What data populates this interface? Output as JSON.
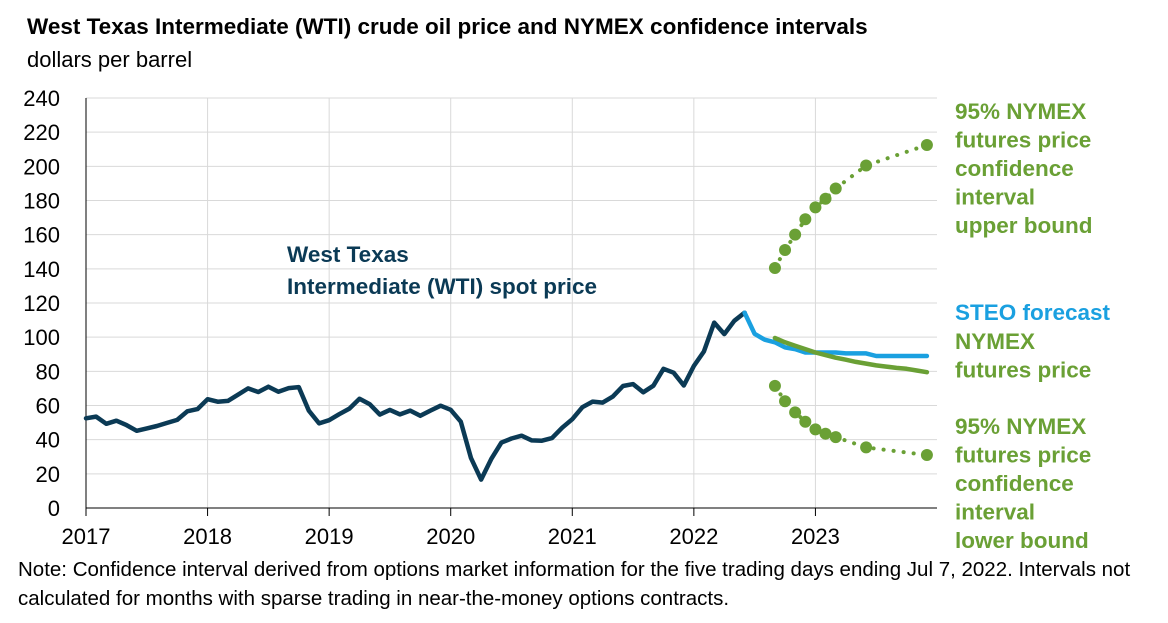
{
  "title": "West Texas Intermediate (WTI) crude oil price and NYMEX confidence intervals",
  "subtitle": "dollars per barrel",
  "note": "Note: Confidence interval derived from options market information for the five trading days ending Jul 7, 2022. Intervals not calculated for months with sparse trading in near-the-money options contracts.",
  "colors": {
    "wti": "#0b3a55",
    "steo": "#1aa0e0",
    "nymex": "#6aa035",
    "grid": "#d9d9d9",
    "axis": "#000000"
  },
  "chart_data": {
    "type": "line",
    "xlim": [
      2017,
      2024
    ],
    "ylim": [
      0,
      240
    ],
    "yticks": [
      0,
      20,
      40,
      60,
      80,
      100,
      120,
      140,
      160,
      180,
      200,
      220,
      240
    ],
    "xticks": [
      "2017",
      "2018",
      "2019",
      "2020",
      "2021",
      "2022",
      "2023"
    ],
    "xtick_values": [
      2017,
      2018,
      2019,
      2020,
      2021,
      2022,
      2023
    ],
    "grid": true,
    "series": [
      {
        "name": "West Texas Intermediate (WTI) spot price",
        "label_lines": [
          "West Texas",
          "Intermediate (WTI) spot price"
        ],
        "color_key": "wti",
        "x": [
          2017.0,
          2017.083,
          2017.167,
          2017.25,
          2017.333,
          2017.417,
          2017.5,
          2017.583,
          2017.667,
          2017.75,
          2017.833,
          2017.917,
          2018.0,
          2018.083,
          2018.167,
          2018.25,
          2018.333,
          2018.417,
          2018.5,
          2018.583,
          2018.667,
          2018.75,
          2018.833,
          2018.917,
          2019.0,
          2019.083,
          2019.167,
          2019.25,
          2019.333,
          2019.417,
          2019.5,
          2019.583,
          2019.667,
          2019.75,
          2019.833,
          2019.917,
          2020.0,
          2020.083,
          2020.167,
          2020.25,
          2020.333,
          2020.417,
          2020.5,
          2020.583,
          2020.667,
          2020.75,
          2020.833,
          2020.917,
          2021.0,
          2021.083,
          2021.167,
          2021.25,
          2021.333,
          2021.417,
          2021.5,
          2021.583,
          2021.667,
          2021.75,
          2021.833,
          2021.917,
          2022.0,
          2022.083,
          2022.167,
          2022.25,
          2022.333,
          2022.417
        ],
        "y": [
          52.5,
          53.5,
          49.3,
          51.1,
          48.5,
          45.2,
          46.6,
          48.0,
          49.8,
          51.6,
          56.6,
          57.9,
          63.7,
          62.2,
          62.7,
          66.3,
          70.0,
          67.9,
          71.0,
          68.1,
          70.2,
          70.8,
          57.0,
          49.5,
          51.4,
          54.9,
          58.2,
          63.9,
          60.8,
          54.7,
          57.4,
          54.8,
          57.0,
          54.0,
          57.0,
          59.9,
          57.5,
          50.5,
          29.2,
          16.6,
          28.6,
          38.3,
          40.7,
          42.3,
          39.6,
          39.4,
          40.9,
          47.0,
          52.0,
          59.0,
          62.3,
          61.7,
          65.2,
          71.4,
          72.5,
          67.7,
          71.6,
          81.5,
          79.2,
          71.7,
          83.2,
          91.6,
          108.5,
          101.8,
          109.6,
          114.3
        ]
      },
      {
        "name": "STEO forecast",
        "color_key": "steo",
        "x": [
          2022.417,
          2022.5,
          2022.583,
          2022.667,
          2022.75,
          2022.833,
          2022.917,
          2023.0,
          2023.083,
          2023.167,
          2023.25,
          2023.333,
          2023.417,
          2023.5,
          2023.583,
          2023.667,
          2023.75,
          2023.833,
          2023.917
        ],
        "y": [
          114.3,
          102.0,
          98.5,
          97.0,
          94.0,
          93.0,
          91.0,
          91.0,
          91.0,
          91.0,
          90.5,
          90.5,
          90.5,
          89.0,
          89.0,
          89.0,
          89.0,
          89.0,
          89.0
        ]
      },
      {
        "name": "NYMEX futures price",
        "label_lines": [
          "NYMEX",
          "futures price"
        ],
        "color_key": "nymex",
        "x": [
          2022.667,
          2022.75,
          2022.833,
          2022.917,
          2023.0,
          2023.083,
          2023.167,
          2023.25,
          2023.333,
          2023.417,
          2023.5,
          2023.583,
          2023.667,
          2023.75,
          2023.833,
          2023.917
        ],
        "y": [
          99.5,
          97.0,
          95.0,
          93.0,
          91.0,
          89.5,
          88.0,
          86.8,
          85.5,
          84.5,
          83.5,
          82.8,
          82.0,
          81.5,
          80.5,
          79.5
        ]
      },
      {
        "name": "95% NYMEX futures price confidence interval upper bound",
        "label_lines": [
          "95% NYMEX",
          "futures price",
          "confidence",
          "interval",
          "upper bound"
        ],
        "color_key": "nymex",
        "style": "dotted-markers",
        "x": [
          2022.667,
          2022.75,
          2022.833,
          2022.917,
          2023.0,
          2023.083,
          2023.167,
          2023.417,
          2023.917
        ],
        "y": [
          140.5,
          151.0,
          160.0,
          169.0,
          176.0,
          181.0,
          187.0,
          200.5,
          212.5
        ]
      },
      {
        "name": "95% NYMEX futures price confidence interval lower bound",
        "label_lines": [
          "95% NYMEX",
          "futures price",
          "confidence",
          "interval",
          "lower bound"
        ],
        "color_key": "nymex",
        "style": "dotted-markers",
        "x": [
          2022.667,
          2022.75,
          2022.833,
          2022.917,
          2023.0,
          2023.083,
          2023.167,
          2023.417,
          2023.917
        ],
        "y": [
          71.5,
          62.5,
          56.0,
          50.5,
          46.0,
          43.5,
          41.5,
          35.5,
          31.0
        ]
      }
    ],
    "annotations": {
      "steo_label": "STEO forecast"
    }
  }
}
